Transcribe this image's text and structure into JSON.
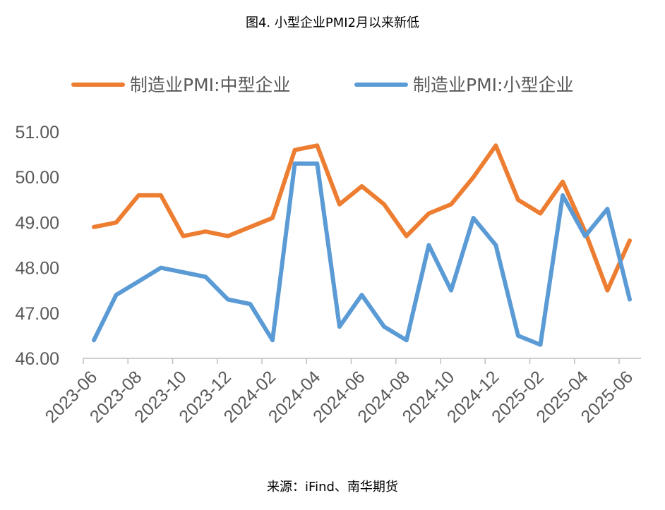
{
  "figure_title": "图4. 小型企业PMI2月以来新低",
  "source_note": "来源：iFind、南华期货",
  "chart_data": {
    "type": "line",
    "x": [
      "2023-06",
      "2023-07",
      "2023-08",
      "2023-09",
      "2023-10",
      "2023-11",
      "2023-12",
      "2024-01",
      "2024-02",
      "2024-03",
      "2024-04",
      "2024-05",
      "2024-06",
      "2024-07",
      "2024-08",
      "2024-09",
      "2024-10",
      "2024-11",
      "2024-12",
      "2025-01",
      "2025-02",
      "2025-03",
      "2025-04",
      "2025-05",
      "2025-06"
    ],
    "x_tick_labels": [
      "2023-06",
      "2023-08",
      "2023-10",
      "2023-12",
      "2024-02",
      "2024-04",
      "2024-06",
      "2024-08",
      "2024-10",
      "2024-12",
      "2025-02",
      "2025-04",
      "2025-06"
    ],
    "y_tick_labels": [
      "46.00",
      "47.00",
      "48.00",
      "49.00",
      "50.00",
      "51.00"
    ],
    "ylim": [
      46,
      51
    ],
    "grid": false,
    "legend_position": "top",
    "series": [
      {
        "name": "制造业PMI:中型企业",
        "color": "#ED7D31",
        "values": [
          48.9,
          49.0,
          49.6,
          49.6,
          48.7,
          48.8,
          48.7,
          48.9,
          49.1,
          50.6,
          50.7,
          49.4,
          49.8,
          49.4,
          48.7,
          49.2,
          49.4,
          50.0,
          50.7,
          49.5,
          49.2,
          49.9,
          48.8,
          47.5,
          48.6
        ]
      },
      {
        "name": "制造业PMI:小型企业",
        "color": "#5B9BD5",
        "values": [
          46.4,
          47.4,
          47.7,
          48.0,
          47.9,
          47.8,
          47.3,
          47.2,
          46.4,
          50.3,
          50.3,
          46.7,
          47.4,
          46.7,
          46.4,
          48.5,
          47.5,
          49.1,
          48.5,
          46.5,
          46.3,
          49.6,
          48.7,
          49.3,
          47.3
        ]
      }
    ]
  }
}
